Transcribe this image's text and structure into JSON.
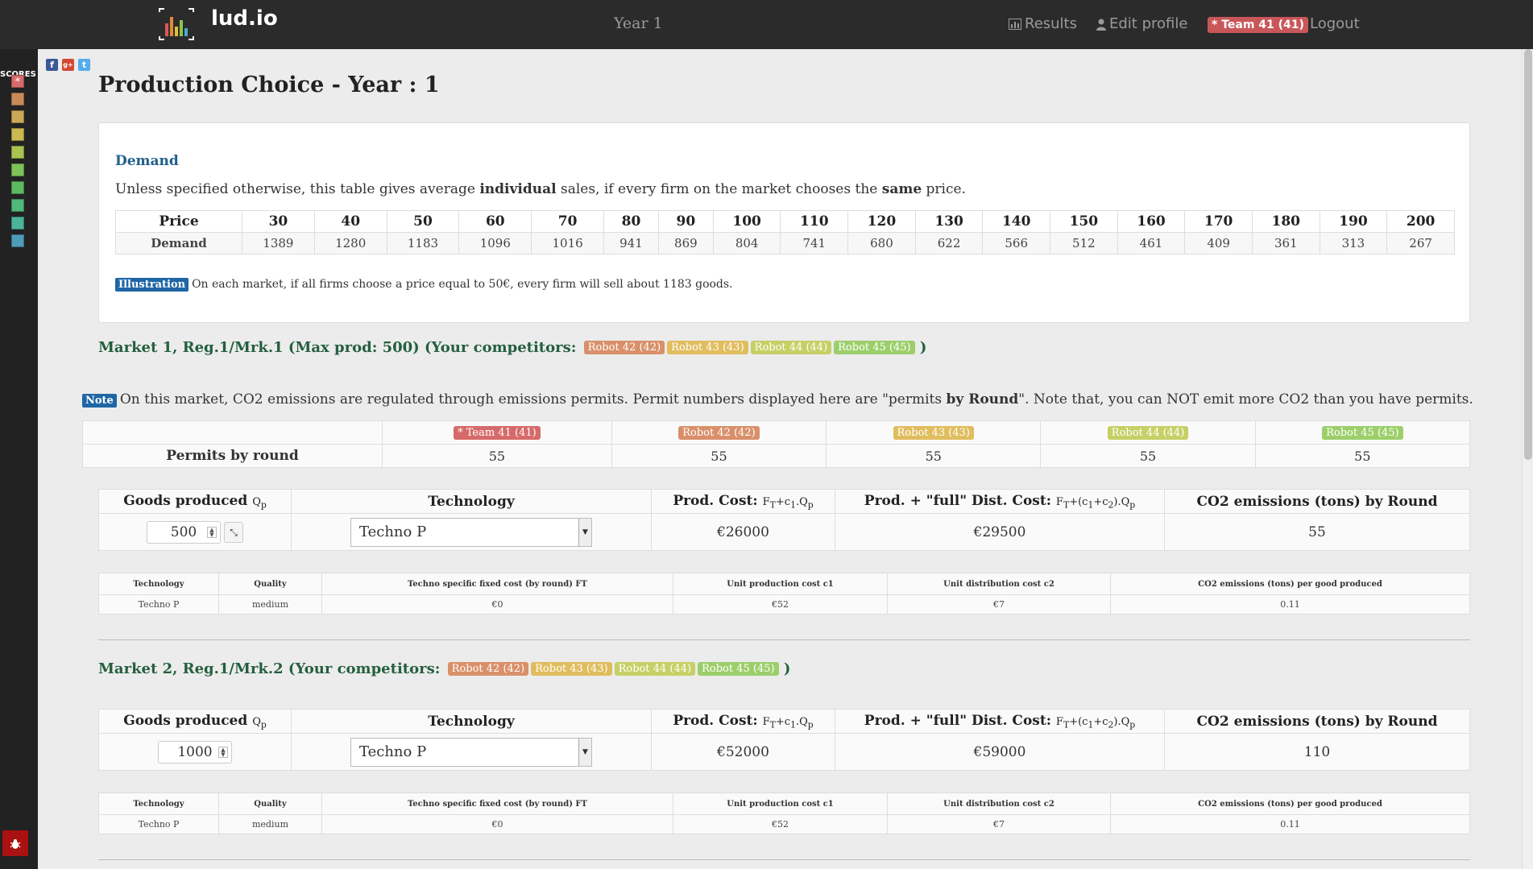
{
  "nav": {
    "brand": "lud.io",
    "year": "Year 1",
    "results": "Results",
    "edit_profile": "Edit profile",
    "team_badge": "* Team 41 (41)",
    "logout": "Logout"
  },
  "sidebar": {
    "scores_label": "SCORES",
    "score_colors": [
      "#d66a6a",
      "#c98a5a",
      "#caa857",
      "#c9b94f",
      "#aac24f",
      "#7ec25a",
      "#5cba62",
      "#4fb87a",
      "#4bb49a",
      "#4f9cb8"
    ],
    "first_marker": "*",
    "bug_icon": "bug-icon"
  },
  "social": {
    "facebook": "f",
    "google": "g+",
    "twitter": "t"
  },
  "page_title": "Production Choice - Year : 1",
  "demand": {
    "heading": "Demand",
    "text_pre": "Unless specified otherwise, this table gives average ",
    "text_bold1": "individual",
    "text_mid": " sales, if every firm on the market chooses the ",
    "text_bold2": "same",
    "text_post": " price.",
    "price_label": "Price",
    "demand_label": "Demand",
    "prices": [
      "30",
      "40",
      "50",
      "60",
      "70",
      "80",
      "90",
      "100",
      "110",
      "120",
      "130",
      "140",
      "150",
      "160",
      "170",
      "180",
      "190",
      "200"
    ],
    "demands": [
      "1389",
      "1280",
      "1183",
      "1096",
      "1016",
      "941",
      "869",
      "804",
      "741",
      "680",
      "622",
      "566",
      "512",
      "461",
      "409",
      "361",
      "313",
      "267"
    ],
    "illustration_label": "Illustration",
    "illustration_text": "On each market, if all firms choose a price equal to 50€, every firm will sell about 1183 goods."
  },
  "market1": {
    "heading": "Market 1, Reg.1/Mrk.1 (Max prod: 500) (Your competitors:",
    "close": ")",
    "competitors": [
      "Robot 42 (42)",
      "Robot 43 (43)",
      "Robot 44 (44)",
      "Robot 45 (45)"
    ],
    "note_label": "Note",
    "note_pre": "On this market, CO2 emissions are regulated through emissions permits. Permit numbers displayed here are \"permits ",
    "note_bold": "by Round",
    "note_post": "\". Note that, you can NOT emit more CO2 than you have permits.",
    "permit_teams": [
      "* Team 41 (41)",
      "Robot 42 (42)",
      "Robot 43 (43)",
      "Robot 44 (44)",
      "Robot 45 (45)"
    ],
    "permits_label": "Permits by round",
    "permits": [
      "55",
      "55",
      "55",
      "55",
      "55"
    ],
    "goods_produced": "500",
    "technology": "Techno P",
    "prod_cost": "€26000",
    "full_cost": "€29500",
    "co2": "55"
  },
  "market2": {
    "heading": "Market 2, Reg.1/Mrk.2 (Your competitors:",
    "close": ")",
    "competitors": [
      "Robot 42 (42)",
      "Robot 43 (43)",
      "Robot 44 (44)",
      "Robot 45 (45)"
    ],
    "goods_produced": "1000",
    "technology": "Techno P",
    "prod_cost": "€52000",
    "full_cost": "€59000",
    "co2": "110"
  },
  "prod_headers": {
    "goods": "Goods produced ",
    "goods_sub": "Qp",
    "technology": "Technology",
    "prod_cost": "Prod. Cost: ",
    "prod_cost_sub": "FT+c1.Qp",
    "full_cost": "Prod. + \"full\" Dist. Cost: ",
    "full_cost_sub": "FT+(c1+c2).Qp",
    "co2": "CO2 emissions (tons) by Round"
  },
  "detail_headers": {
    "technology": "Technology",
    "quality": "Quality",
    "fixed": "Techno specific fixed cost (by round) FT",
    "unit_prod": "Unit production cost c1",
    "unit_dist": "Unit distribution cost c2",
    "co2_per": "CO2 emissions (tons) per good produced"
  },
  "detail_row": {
    "technology": "Techno P",
    "quality": "medium",
    "fixed": "€0",
    "unit_prod": "€52",
    "unit_dist": "€7",
    "co2_per": "0.11"
  }
}
